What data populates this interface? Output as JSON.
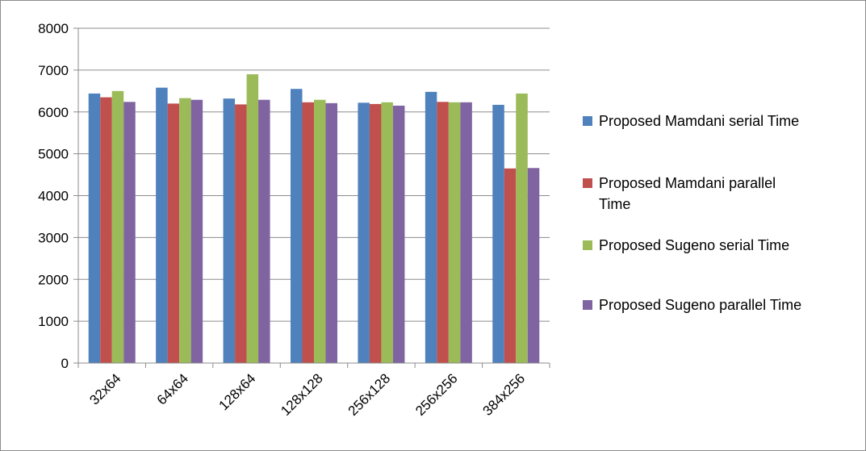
{
  "chart_data": {
    "type": "bar",
    "categories": [
      "32x64",
      "64x64",
      "128x64",
      "128x128",
      "256x128",
      "256x256",
      "384x256"
    ],
    "series": [
      {
        "name": "Proposed Mamdani serial Time",
        "color": "#4f81bd",
        "values": [
          6440,
          6580,
          6320,
          6550,
          6220,
          6480,
          6170
        ]
      },
      {
        "name": "Proposed Mamdani parallel Time",
        "color": "#c0504d",
        "values": [
          6350,
          6200,
          6180,
          6230,
          6190,
          6240,
          4650
        ]
      },
      {
        "name": "Proposed Sugeno serial Time",
        "color": "#9bbb59",
        "values": [
          6500,
          6330,
          6900,
          6290,
          6230,
          6230,
          6440
        ]
      },
      {
        "name": "Proposed Sugeno parallel Time",
        "color": "#8064a2",
        "values": [
          6240,
          6290,
          6290,
          6210,
          6150,
          6230,
          4660
        ]
      }
    ],
    "ylim": [
      0,
      8000
    ],
    "yticks": [
      0,
      1000,
      2000,
      3000,
      4000,
      5000,
      6000,
      7000,
      8000
    ],
    "grid": true,
    "legend_position": "right",
    "title": "",
    "xlabel": "",
    "ylabel": ""
  },
  "legend": {
    "lines": [
      [
        "Proposed Mamdani serial Time"
      ],
      [
        "Proposed Mamdani parallel",
        "Time"
      ],
      [
        "Proposed Sugeno serial Time"
      ],
      [
        "Proposed Sugeno parallel Time"
      ]
    ]
  }
}
